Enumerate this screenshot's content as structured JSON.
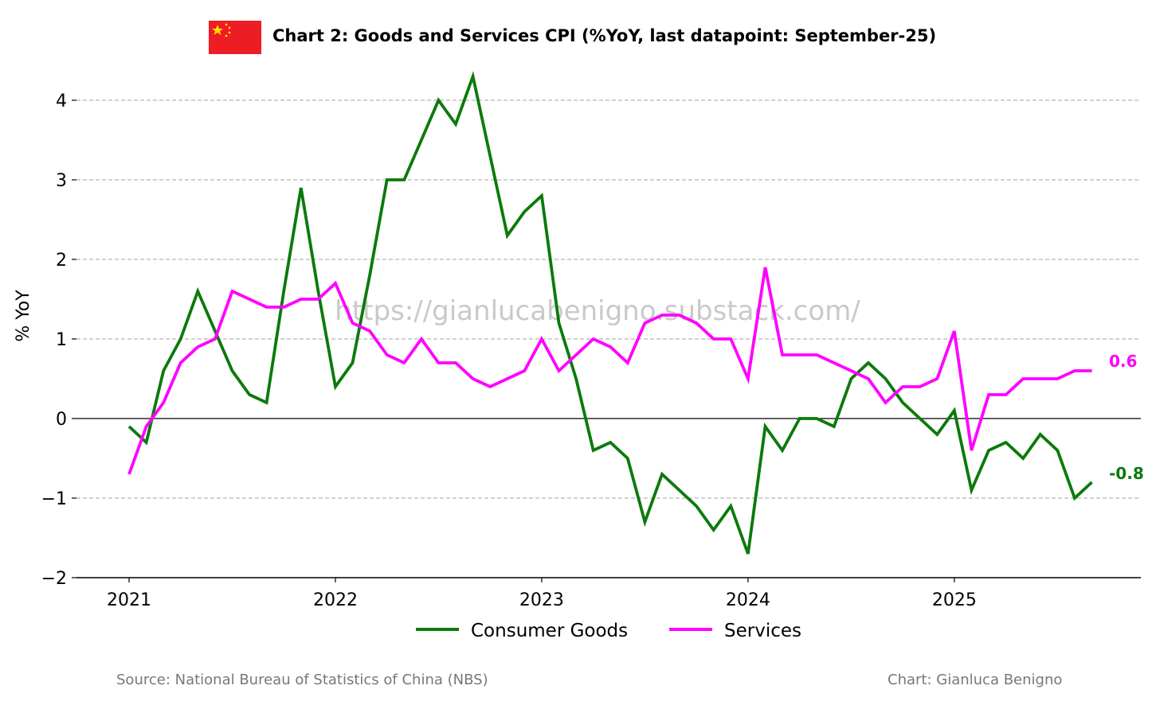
{
  "chart_data": {
    "type": "line",
    "title": "Chart 2: Goods and Services CPI (%YoY, last datapoint: September-25)",
    "ylabel": "% YoY",
    "xlabel": "",
    "ylim": [
      -2,
      4.4
    ],
    "yticks": [
      4,
      3,
      2,
      1,
      0,
      -1,
      -2
    ],
    "ytick_labels": [
      "4",
      "3",
      "2",
      "1",
      "0",
      "−1",
      "−2"
    ],
    "xticks": [
      2021,
      2022,
      2023,
      2024,
      2025
    ],
    "xtick_labels": [
      "2021",
      "2022",
      "2023",
      "2024",
      "2025"
    ],
    "x_start": "2021-01",
    "x_end": "2025-09",
    "grid": "horizontal dashed",
    "legend_position": "bottom-center",
    "series": [
      {
        "name": "Consumer Goods",
        "color": "#0b7a0b",
        "end_label": "-0.8",
        "values": [
          -0.1,
          -0.3,
          0.6,
          1.0,
          1.6,
          1.1,
          0.6,
          0.3,
          0.2,
          1.6,
          2.9,
          1.6,
          0.4,
          0.7,
          1.8,
          3.0,
          3.0,
          3.5,
          4.0,
          3.7,
          4.3,
          3.3,
          2.3,
          2.6,
          2.8,
          1.2,
          0.5,
          -0.4,
          -0.3,
          -0.5,
          -1.3,
          -0.7,
          -0.9,
          -1.1,
          -1.4,
          -1.1,
          -1.7,
          -0.1,
          -0.4,
          0.0,
          0.0,
          -0.1,
          0.5,
          0.7,
          0.5,
          0.2,
          0.0,
          -0.2,
          0.1,
          -0.9,
          -0.4,
          -0.3,
          -0.5,
          -0.2,
          -0.4,
          -1.0,
          -0.8
        ]
      },
      {
        "name": "Services",
        "color": "#ff00ff",
        "end_label": "0.6",
        "values": [
          -0.7,
          -0.1,
          0.2,
          0.7,
          0.9,
          1.0,
          1.6,
          1.5,
          1.4,
          1.4,
          1.5,
          1.5,
          1.7,
          1.2,
          1.1,
          0.8,
          0.7,
          1.0,
          0.7,
          0.7,
          0.5,
          0.4,
          0.5,
          0.6,
          1.0,
          0.6,
          0.8,
          1.0,
          0.9,
          0.7,
          1.2,
          1.3,
          1.3,
          1.2,
          1.0,
          1.0,
          0.5,
          1.9,
          0.8,
          0.8,
          0.8,
          0.7,
          0.6,
          0.5,
          0.2,
          0.4,
          0.4,
          0.5,
          1.1,
          -0.4,
          0.3,
          0.3,
          0.5,
          0.5,
          0.5,
          0.6,
          0.6
        ]
      }
    ]
  },
  "flag": {
    "name": "china-flag",
    "red": "#ee1c25",
    "yellow": "#ffde00"
  },
  "watermark": "https://gianlucabenigno.substack.com/",
  "footer": {
    "source": "Source: National Bureau of Statistics of China (NBS)",
    "credit": "Chart: Gianluca Benigno"
  }
}
